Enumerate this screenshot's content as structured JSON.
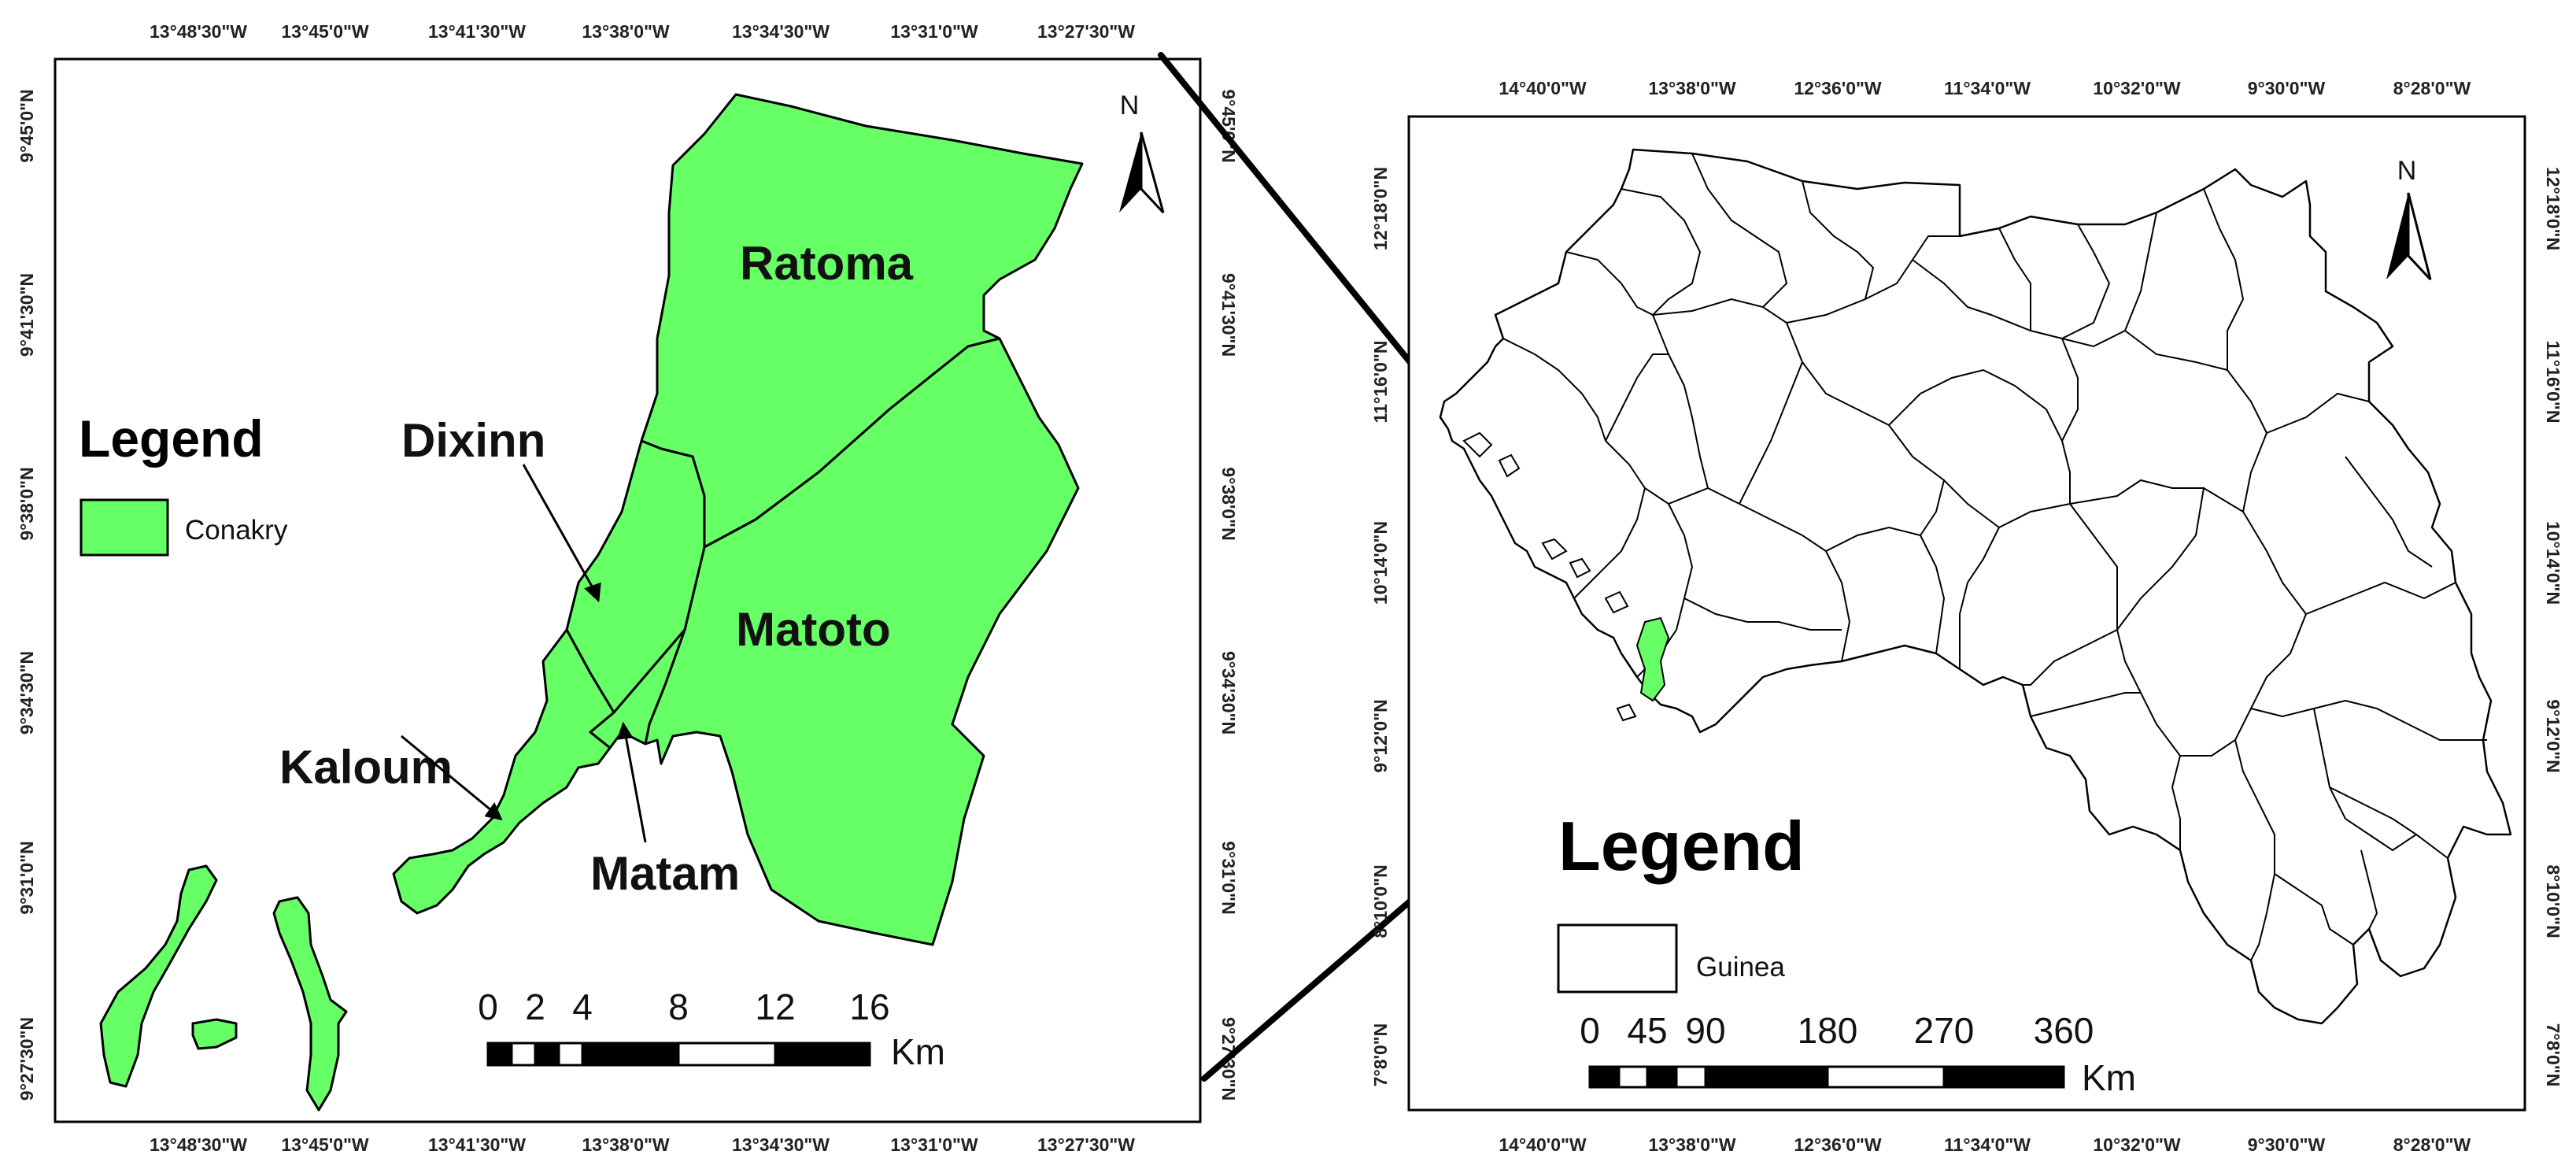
{
  "colors": {
    "conakry": "#66ff66",
    "frame": "#000000",
    "guinea_fill": "#ffffff"
  },
  "left_map": {
    "top_lon_ticks": [
      "13°48'30\"W",
      "13°45'0\"W",
      "13°41'30\"W",
      "13°38'0\"W",
      "13°34'30\"W",
      "13°31'0\"W",
      "13°27'30\"W"
    ],
    "bottom_lon_ticks": [
      "13°48'30\"W",
      "13°45'0\"W",
      "13°41'30\"W",
      "13°38'0\"W",
      "13°34'30\"W",
      "13°31'0\"W",
      "13°27'30\"W"
    ],
    "left_lat_ticks": [
      "9°45'0\"N",
      "9°41'30\"N",
      "9°38'0\"N",
      "9°34'30\"N",
      "9°31'0\"N",
      "9°27'30\"N"
    ],
    "right_lat_ticks": [
      "9°45'0\"N",
      "9°41'30\"N",
      "9°38'0\"N",
      "9°34'30\"N",
      "9°31'0\"N",
      "9°27'30\"N"
    ],
    "legend_title": "Legend",
    "legend_item": "Conakry",
    "north_label": "N",
    "districts": {
      "ratoma": "Ratoma",
      "dixinn": "Dixinn",
      "matoto": "Matoto",
      "kaloum": "Kaloum",
      "matam": "Matam"
    },
    "scale_labels": [
      "0",
      "2",
      "4",
      "8",
      "12",
      "16"
    ],
    "scale_unit": "Km"
  },
  "right_map": {
    "top_lon_ticks": [
      "14°40'0\"W",
      "13°38'0\"W",
      "12°36'0\"W",
      "11°34'0\"W",
      "10°32'0\"W",
      "9°30'0\"W",
      "8°28'0\"W"
    ],
    "bottom_lon_ticks": [
      "14°40'0\"W",
      "13°38'0\"W",
      "12°36'0\"W",
      "11°34'0\"W",
      "10°32'0\"W",
      "9°30'0\"W",
      "8°28'0\"W"
    ],
    "left_lat_ticks": [
      "12°18'0\"N",
      "11°16'0\"N",
      "10°14'0\"N",
      "9°12'0\"N",
      "8°10'0\"N",
      "7°8'0\"N"
    ],
    "right_lat_ticks": [
      "12°18'0\"N",
      "11°16'0\"N",
      "10°14'0\"N",
      "9°12'0\"N",
      "8°10'0\"N",
      "7°8'0\"N"
    ],
    "legend_title": "Legend",
    "legend_item": "Guinea",
    "north_label": "N",
    "scale_labels": [
      "0",
      "45",
      "90",
      "180",
      "270",
      "360"
    ],
    "scale_unit": "Km"
  }
}
